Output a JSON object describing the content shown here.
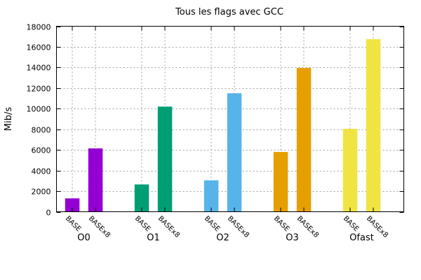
{
  "chart_data": {
    "type": "bar",
    "title": "Tous les flags avec GCC",
    "ylabel": "Mib/s",
    "xlabel": "",
    "ylim": [
      0,
      18000
    ],
    "yticks": [
      0,
      2000,
      4000,
      6000,
      8000,
      10000,
      12000,
      14000,
      16000,
      18000
    ],
    "grid": true,
    "bar_labels": [
      "BASE",
      "BASEx8"
    ],
    "groups": [
      {
        "name": "O0",
        "color": "#9400d3",
        "values": [
          1300,
          6150
        ]
      },
      {
        "name": "O1",
        "color": "#009e73",
        "values": [
          2650,
          10200
        ]
      },
      {
        "name": "O2",
        "color": "#56b4e9",
        "values": [
          3050,
          11500
        ]
      },
      {
        "name": "O3",
        "color": "#e69f00",
        "values": [
          5800,
          13950
        ]
      },
      {
        "name": "Ofast",
        "color": "#f0e442",
        "values": [
          8050,
          16750
        ]
      }
    ]
  }
}
